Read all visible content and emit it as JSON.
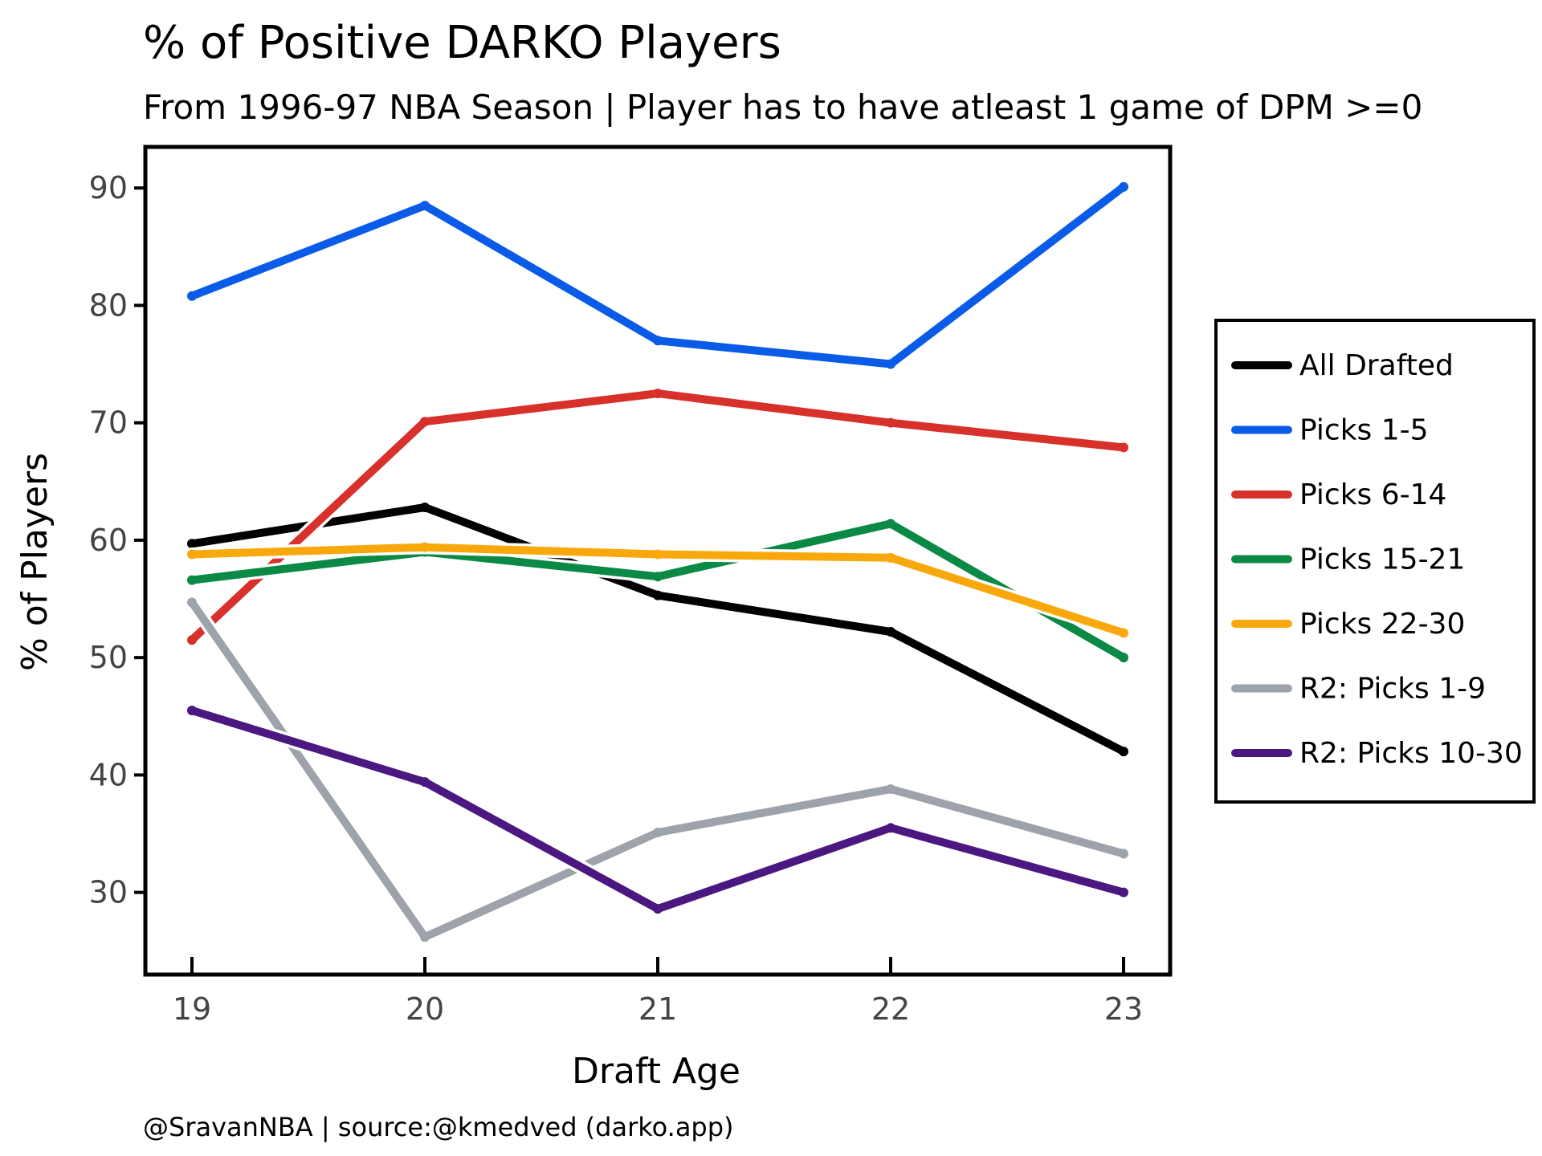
{
  "chart_data": {
    "type": "line",
    "title": "% of Positive DARKO Players",
    "subtitle": "From 1996-97 NBA Season | Player has to have atleast 1 game of DPM >=0",
    "xlabel": "Draft Age",
    "ylabel": "% of Players",
    "x": [
      19,
      20,
      21,
      22,
      23
    ],
    "x_tick_labels": [
      "19",
      "20",
      "21",
      "22",
      "23"
    ],
    "y_ticks": [
      30,
      40,
      50,
      60,
      70,
      80,
      90
    ],
    "y_tick_labels": [
      "30",
      "40",
      "50",
      "60",
      "70",
      "80",
      "90"
    ],
    "xlim": [
      18.8,
      23.2
    ],
    "ylim": [
      23.0,
      93.5
    ],
    "grid": false,
    "legend_position": "right",
    "series": [
      {
        "name": "All Drafted",
        "color": "#000000",
        "values": [
          59.7,
          62.8,
          55.3,
          52.2,
          42.0
        ]
      },
      {
        "name": "Picks 1-5",
        "color": "#0a5be8",
        "values": [
          80.8,
          88.5,
          77.0,
          75.0,
          90.1
        ]
      },
      {
        "name": "Picks 6-14",
        "color": "#d8302a",
        "values": [
          51.5,
          70.1,
          72.5,
          70.0,
          67.9
        ]
      },
      {
        "name": "Picks 15-21",
        "color": "#0b8a45",
        "values": [
          56.6,
          59.0,
          56.9,
          61.4,
          50.0
        ]
      },
      {
        "name": "Picks 22-30",
        "color": "#f9a80c",
        "values": [
          58.8,
          59.4,
          58.8,
          58.5,
          52.1
        ]
      },
      {
        "name": "R2: Picks 1-9",
        "color": "#9ea3ab",
        "values": [
          54.7,
          26.2,
          35.1,
          38.8,
          33.3
        ]
      },
      {
        "name": "R2: Picks 10-30",
        "color": "#4b1780",
        "values": [
          45.5,
          39.4,
          28.6,
          35.5,
          30.0
        ]
      }
    ]
  },
  "footer": "@SravanNBA | source:@kmedved (darko.app)"
}
